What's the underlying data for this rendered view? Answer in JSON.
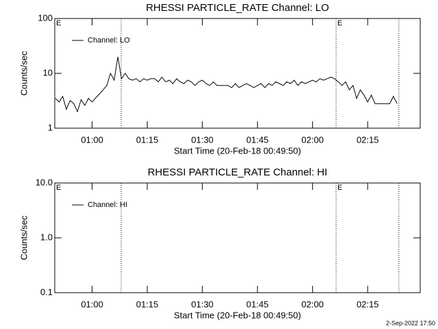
{
  "chart_data": [
    {
      "type": "line",
      "title": "RHESSI PARTICLE_RATE Channel: LO",
      "xlabel": "Start Time (20-Feb-18 00:49:50)",
      "ylabel": "Counts/sec",
      "ylog": true,
      "ylim": [
        1,
        100
      ],
      "yticks": [
        1,
        10,
        100
      ],
      "xlim": [
        49.83,
        149.3
      ],
      "xticks": [
        {
          "value": 60,
          "label": "01:00"
        },
        {
          "value": 75,
          "label": "01:15"
        },
        {
          "value": 90,
          "label": "01:30"
        },
        {
          "value": 105,
          "label": "01:45"
        },
        {
          "value": 120,
          "label": "02:00"
        },
        {
          "value": 135,
          "label": "02:15"
        }
      ],
      "vlines": [
        67.9,
        126.4,
        143.5
      ],
      "events": [
        {
          "x": 49.83,
          "label": "E"
        },
        {
          "x": 126.4,
          "label": "E"
        }
      ],
      "legend": "upper left",
      "x": [
        50,
        51,
        52,
        53,
        54,
        55,
        56,
        57,
        58,
        59,
        60,
        61,
        62,
        63,
        64,
        65,
        66,
        67,
        68,
        69,
        70,
        71,
        72,
        73,
        74,
        75,
        76,
        77,
        78,
        79,
        80,
        81,
        82,
        83,
        84,
        85,
        86,
        87,
        88,
        89,
        90,
        91,
        92,
        93,
        94,
        95,
        96,
        97,
        98,
        99,
        100,
        101,
        102,
        103,
        104,
        105,
        106,
        107,
        108,
        109,
        110,
        111,
        112,
        113,
        114,
        115,
        116,
        117,
        118,
        119,
        120,
        121,
        122,
        123,
        124,
        125,
        126,
        127,
        128,
        129,
        130,
        131,
        132,
        133,
        134,
        135,
        136,
        137,
        138,
        139,
        140,
        141,
        142,
        143
      ],
      "series": [
        {
          "name": "Channel: LO",
          "color": "#000000",
          "values": [
            3.5,
            3,
            3.8,
            2.2,
            3.2,
            2.8,
            2.0,
            3.3,
            2.6,
            3.5,
            3,
            3.6,
            4.2,
            5,
            6,
            10,
            7.5,
            20,
            8,
            10,
            8,
            7.5,
            8,
            7,
            8,
            7.5,
            8,
            8,
            7,
            8.5,
            7,
            7.5,
            6.5,
            8,
            7,
            6.5,
            7.5,
            7,
            6,
            7,
            7.5,
            6.5,
            6,
            7,
            6,
            6,
            6,
            6,
            5.5,
            6.5,
            5.5,
            6,
            6.5,
            6,
            5.5,
            6,
            6.5,
            5.5,
            6.5,
            6,
            7,
            6.5,
            6,
            7,
            6.5,
            7.5,
            6,
            7,
            6.5,
            7,
            7.5,
            7,
            8,
            7.5,
            8,
            8.5,
            8,
            7,
            6,
            7,
            5,
            6,
            3.5,
            5,
            4,
            3,
            4,
            2.8,
            2.8,
            2.8,
            2.8,
            2.8,
            3.8,
            2.8
          ]
        }
      ]
    },
    {
      "type": "line",
      "title": "RHESSI PARTICLE_RATE Channel: HI",
      "xlabel": "Start Time (20-Feb-18 00:49:50)",
      "ylabel": "Counts/sec",
      "ylog": true,
      "ylim": [
        0.1,
        10
      ],
      "yticks": [
        0.1,
        {
          "value": 1,
          "label": "1.0"
        },
        {
          "value": 10,
          "label": "10.0"
        }
      ],
      "xlim": [
        49.83,
        149.3
      ],
      "xticks": [
        {
          "value": 60,
          "label": "01:00"
        },
        {
          "value": 75,
          "label": "01:15"
        },
        {
          "value": 90,
          "label": "01:30"
        },
        {
          "value": 105,
          "label": "01:45"
        },
        {
          "value": 120,
          "label": "02:00"
        },
        {
          "value": 135,
          "label": "02:15"
        }
      ],
      "vlines": [
        67.9,
        126.4,
        143.5
      ],
      "events": [
        {
          "x": 49.83,
          "label": "E"
        },
        {
          "x": 126.4,
          "label": "E"
        }
      ],
      "legend": "upper left",
      "x": [],
      "series": [
        {
          "name": "Channel: HI",
          "color": "#000000",
          "values": []
        }
      ]
    }
  ],
  "footer": "2-Sep-2022 17:50"
}
